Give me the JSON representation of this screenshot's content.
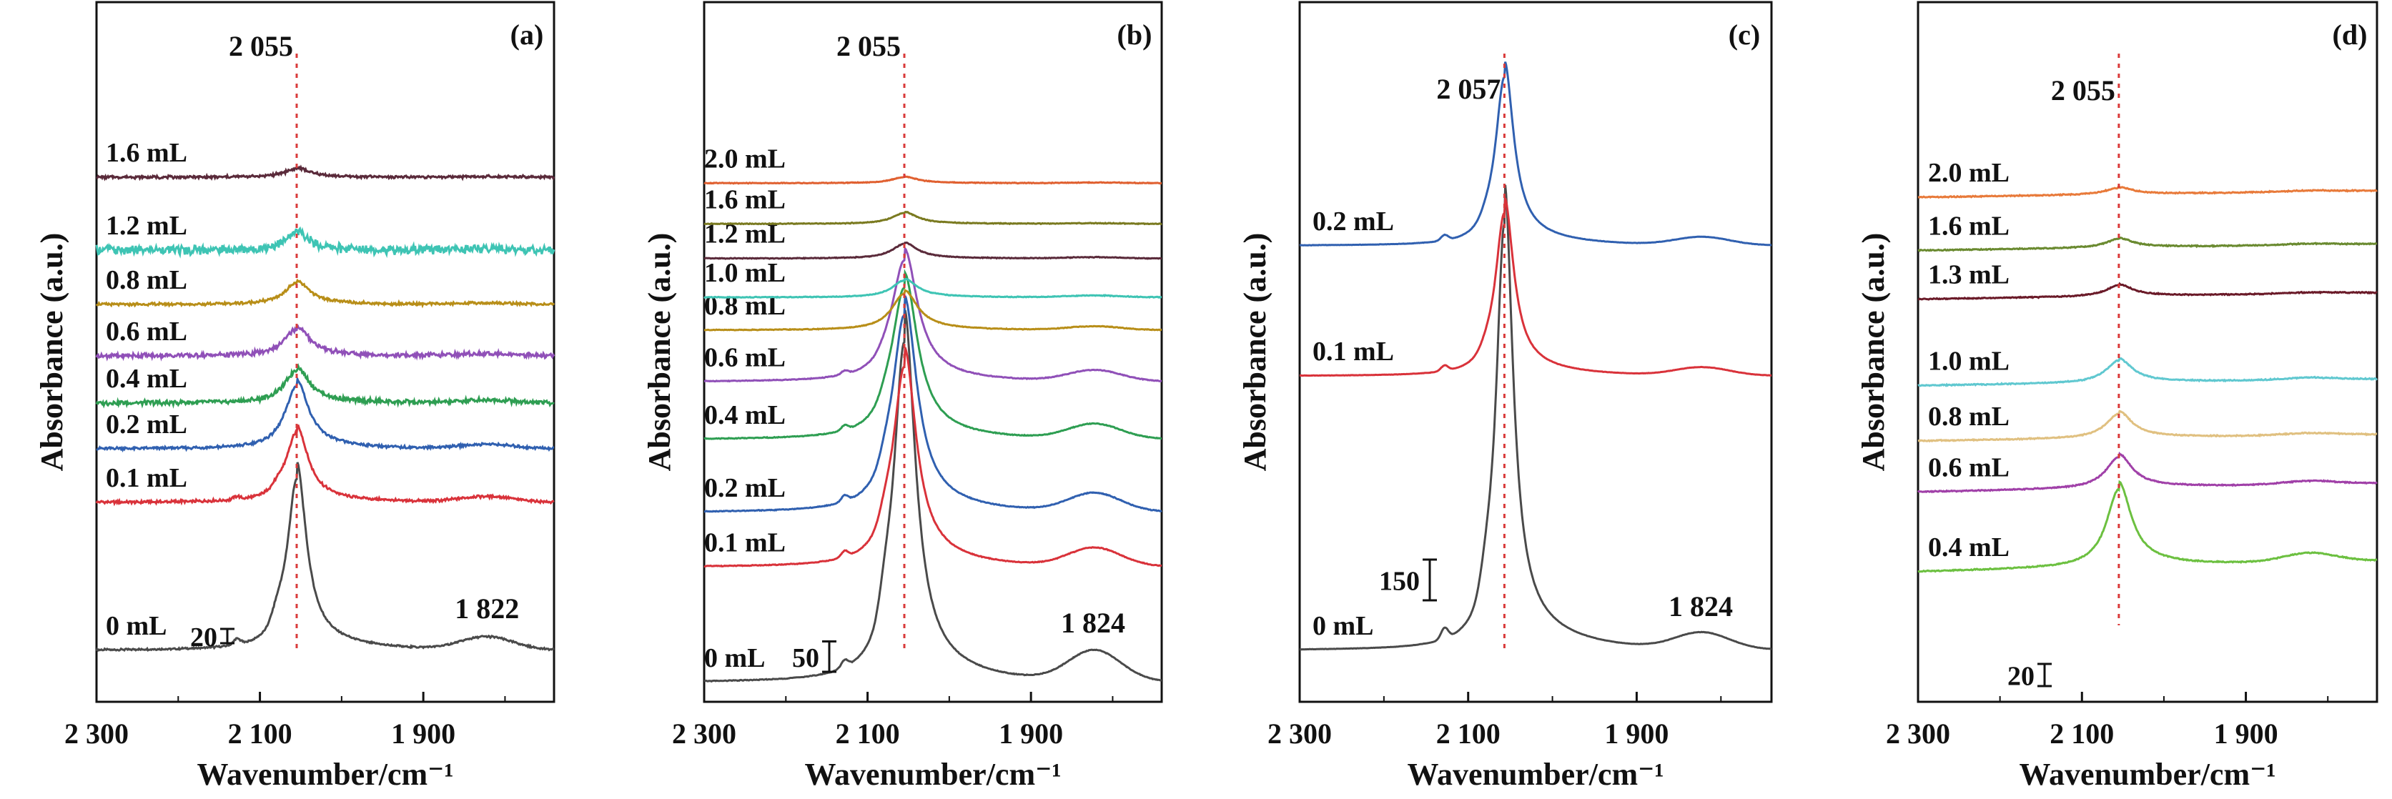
{
  "chart_data": [
    {
      "panel": "(a)",
      "type": "line",
      "xlabel": "Wavenumber/cm⁻¹",
      "ylabel": "Absorbance (a.u.)",
      "xlim": [
        2300,
        1740
      ],
      "x_tick_labels": [
        "2 300",
        "2 100",
        "1 900"
      ],
      "x_ticks": [
        2300,
        2100,
        1900
      ],
      "peak_label": "2 055",
      "peak_x": 2055,
      "secondary_label": "1 822",
      "secondary_x": 1822,
      "scale_bar_label": "20",
      "scale_bar_value": 20,
      "series": [
        {
          "name": "0 mL",
          "color": "#4a4a4a",
          "offset": 0,
          "peak": 240,
          "peak_width": 14,
          "shoulder": 18,
          "satellite": 8,
          "broad": 18,
          "noise": 1
        },
        {
          "name": "0.1 mL",
          "color": "#d9323a",
          "offset": 207,
          "peak": 98,
          "peak_width": 16,
          "shoulder": 6,
          "satellite": 4,
          "broad": 8,
          "noise": 1.5
        },
        {
          "name": "0.2 mL",
          "color": "#3060b0",
          "offset": 282,
          "peak": 88,
          "peak_width": 17,
          "shoulder": 0,
          "satellite": 0,
          "broad": 6,
          "noise": 1.5
        },
        {
          "name": "0.4 mL",
          "color": "#2e9e52",
          "offset": 346,
          "peak": 46,
          "peak_width": 18,
          "shoulder": 0,
          "satellite": 0,
          "broad": 4,
          "noise": 2.5
        },
        {
          "name": "0.6 mL",
          "color": "#9050b8",
          "offset": 412,
          "peak": 38,
          "peak_width": 18,
          "shoulder": 0,
          "satellite": 0,
          "broad": 3,
          "noise": 2.5
        },
        {
          "name": "0.8 mL",
          "color": "#b88e18",
          "offset": 484,
          "peak": 30,
          "peak_width": 18,
          "shoulder": 0,
          "satellite": 0,
          "broad": 2,
          "noise": 1.5
        },
        {
          "name": "1.2 mL",
          "color": "#3ec4b4",
          "offset": 560,
          "peak": 24,
          "peak_width": 16,
          "shoulder": 0,
          "satellite": 0,
          "broad": 2,
          "noise": 5
        },
        {
          "name": "1.6 mL",
          "color": "#5a2a3a",
          "offset": 662,
          "peak": 12,
          "peak_width": 18,
          "shoulder": 0,
          "satellite": 0,
          "broad": 1,
          "noise": 1.5
        }
      ]
    },
    {
      "panel": "(b)",
      "type": "line",
      "xlabel": "Wavenumber/cm⁻¹",
      "ylabel": "Absorbance (a.u.)",
      "xlim": [
        2300,
        1740
      ],
      "x_tick_labels": [
        "2 300",
        "2 100",
        "1 900"
      ],
      "x_ticks": [
        2300,
        2100,
        1900
      ],
      "peak_label": "2 055",
      "peak_x": 2055,
      "secondary_label": "1 824",
      "secondary_x": 1824,
      "scale_bar_label": "50",
      "scale_bar_value": 50,
      "series": [
        {
          "name": "0 mL",
          "color": "#4a4a4a",
          "offset": 0,
          "peak": 560,
          "peak_width": 16,
          "shoulder": 40,
          "satellite": 12,
          "broad": 50,
          "noise": 0.5
        },
        {
          "name": "0.1 mL",
          "color": "#d9323a",
          "offset": 190,
          "peak": 330,
          "peak_width": 17,
          "shoulder": 20,
          "satellite": 10,
          "broad": 30,
          "noise": 0.5
        },
        {
          "name": "0.2 mL",
          "color": "#3060b0",
          "offset": 280,
          "peak": 325,
          "peak_width": 18,
          "shoulder": 16,
          "satellite": 10,
          "broad": 30,
          "noise": 0.5
        },
        {
          "name": "0.4 mL",
          "color": "#2e9e52",
          "offset": 400,
          "peak": 250,
          "peak_width": 19,
          "shoulder": 10,
          "satellite": 8,
          "broad": 24,
          "noise": 0.5
        },
        {
          "name": "0.6 mL",
          "color": "#9050b8",
          "offset": 495,
          "peak": 200,
          "peak_width": 19,
          "shoulder": 6,
          "satellite": 6,
          "broad": 18,
          "noise": 0.5
        },
        {
          "name": "0.8 mL",
          "color": "#b88e18",
          "offset": 580,
          "peak": 60,
          "peak_width": 19,
          "shoulder": 0,
          "satellite": 0,
          "broad": 6,
          "noise": 0.5
        },
        {
          "name": "1.0 mL",
          "color": "#3ec4b4",
          "offset": 634,
          "peak": 28,
          "peak_width": 18,
          "shoulder": 0,
          "satellite": 0,
          "broad": 3,
          "noise": 0.5
        },
        {
          "name": "1.2 mL",
          "color": "#5a2a3a",
          "offset": 698,
          "peak": 24,
          "peak_width": 18,
          "shoulder": 0,
          "satellite": 0,
          "broad": 2,
          "noise": 0.5
        },
        {
          "name": "1.6 mL",
          "color": "#7a7a20",
          "offset": 755,
          "peak": 18,
          "peak_width": 18,
          "shoulder": 0,
          "satellite": 0,
          "broad": 1,
          "noise": 0.5
        },
        {
          "name": "2.0 mL",
          "color": "#e06030",
          "offset": 822,
          "peak": 10,
          "peak_width": 18,
          "shoulder": 0,
          "satellite": 0,
          "broad": 1,
          "noise": 0.5
        }
      ]
    },
    {
      "panel": "(c)",
      "type": "line",
      "xlabel": "Wavenumber/cm⁻¹",
      "ylabel": "Absorbance (a.u.)",
      "xlim": [
        2300,
        1740
      ],
      "x_tick_labels": [
        "2 300",
        "2 100",
        "1 900"
      ],
      "x_ticks": [
        2300,
        2100,
        1900
      ],
      "peak_label": "2 057",
      "peak_x": 2057,
      "secondary_label": "1 824",
      "secondary_x": 1824,
      "scale_bar_label": "150",
      "scale_bar_value": 150,
      "series": [
        {
          "name": "0 mL",
          "color": "#4a4a4a",
          "offset": 0,
          "peak": 1570,
          "peak_width": 12,
          "shoulder": 80,
          "satellite": 40,
          "broad": 60,
          "noise": 0.5
        },
        {
          "name": "0.1 mL",
          "color": "#d9323a",
          "offset": 1010,
          "peak": 600,
          "peak_width": 13,
          "shoulder": 20,
          "satellite": 20,
          "broad": 30,
          "noise": 0.5
        },
        {
          "name": "0.2 mL",
          "color": "#3060b0",
          "offset": 1490,
          "peak": 620,
          "peak_width": 13,
          "shoulder": 20,
          "satellite": 20,
          "broad": 30,
          "noise": 0.5
        }
      ]
    },
    {
      "panel": "(d)",
      "type": "line",
      "xlabel": "Wavenumber/cm⁻¹",
      "ylabel": "Absorbance (a.u.)",
      "xlim": [
        2300,
        1740
      ],
      "x_tick_labels": [
        "2 300",
        "2 100",
        "1 900"
      ],
      "x_ticks": [
        2300,
        2100,
        1900
      ],
      "peak_label": "2 055",
      "peak_x": 2055,
      "scale_bar_label": "20",
      "scale_bar_value": 20,
      "series": [
        {
          "name": "0.4 mL",
          "color": "#6cc040",
          "offset": 0,
          "peak": 70,
          "peak_width": 18,
          "shoulder": 0,
          "satellite": 0,
          "broad": 8,
          "noise": 0.4,
          "tilt": 10
        },
        {
          "name": "0.6 mL",
          "color": "#a040a8",
          "offset": 72,
          "peak": 28,
          "peak_width": 19,
          "shoulder": 0,
          "satellite": 0,
          "broad": 3,
          "noise": 0.4,
          "tilt": 8
        },
        {
          "name": "0.8 mL",
          "color": "#e0c080",
          "offset": 118,
          "peak": 22,
          "peak_width": 19,
          "shoulder": 0,
          "satellite": 0,
          "broad": 2,
          "noise": 0.4,
          "tilt": 6
        },
        {
          "name": "1.0 mL",
          "color": "#60c8d0",
          "offset": 168,
          "peak": 20,
          "peak_width": 19,
          "shoulder": 0,
          "satellite": 0,
          "broad": 2,
          "noise": 0.4,
          "tilt": 6
        },
        {
          "name": "1.3 mL",
          "color": "#6a1a28",
          "offset": 246,
          "peak": 10,
          "peak_width": 19,
          "shoulder": 0,
          "satellite": 0,
          "broad": 1,
          "noise": 0.4,
          "tilt": 6
        },
        {
          "name": "1.6 mL",
          "color": "#6a8a30",
          "offset": 290,
          "peak": 8,
          "peak_width": 19,
          "shoulder": 0,
          "satellite": 0,
          "broad": 1,
          "noise": 0.4,
          "tilt": 6
        },
        {
          "name": "2.0 mL",
          "color": "#e87a3a",
          "offset": 338,
          "peak": 6,
          "peak_width": 19,
          "shoulder": 0,
          "satellite": 0,
          "broad": 1,
          "noise": 0.4,
          "tilt": 6
        }
      ]
    }
  ]
}
